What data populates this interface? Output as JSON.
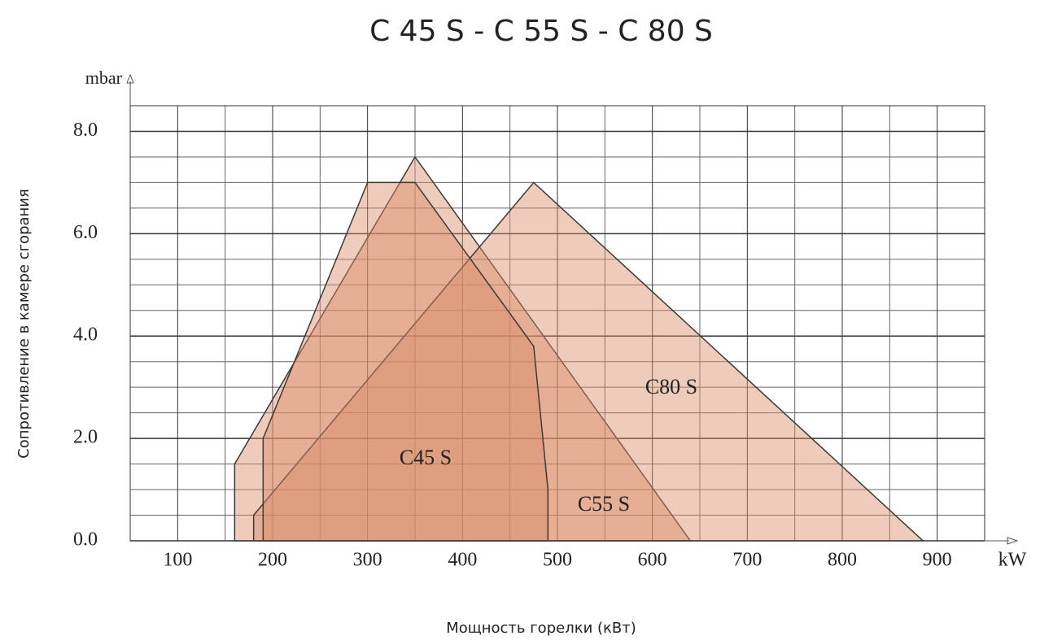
{
  "chart_data": {
    "type": "area",
    "title": "C 45 S - C 55 S - C 80 S",
    "x_label": "Мощность горелки (кВт)",
    "y_label": "Сопротивление в камере сгорания",
    "x_unit": "kW",
    "y_unit": "mbar",
    "xlim": [
      50,
      950
    ],
    "ylim": [
      0,
      8.5
    ],
    "xticks": [
      100,
      200,
      300,
      400,
      500,
      600,
      700,
      800,
      900
    ],
    "yticks": [
      {
        "value": 0,
        "label": "0.0"
      },
      {
        "value": 2,
        "label": "2.0"
      },
      {
        "value": 4,
        "label": "4.0"
      },
      {
        "value": 6,
        "label": "6.0"
      },
      {
        "value": 8,
        "label": "8.0"
      }
    ],
    "minor_xticks": [
      50,
      150,
      250,
      350,
      450,
      550,
      650,
      750,
      850,
      950
    ],
    "minor_yticks": [
      0.5,
      1,
      1.5,
      2.5,
      3,
      3.5,
      4.5,
      5,
      5.5,
      6.5,
      7,
      7.5,
      8.5
    ],
    "grid": true,
    "series": [
      {
        "name": "C55 S",
        "color": "#d98b68",
        "x": [
          160,
          160,
          350,
          640
        ],
        "values": [
          0,
          1.5,
          7.5,
          0
        ]
      },
      {
        "name": "C80 S",
        "color": "#d98b68",
        "x": [
          180,
          180,
          475,
          885
        ],
        "values": [
          0,
          0.5,
          7,
          0
        ]
      },
      {
        "name": "C45 S",
        "color": "#d98b68",
        "x": [
          190,
          190,
          300,
          350,
          475,
          490,
          490
        ],
        "values": [
          0,
          2,
          7,
          7,
          3.8,
          1,
          0
        ]
      }
    ]
  }
}
